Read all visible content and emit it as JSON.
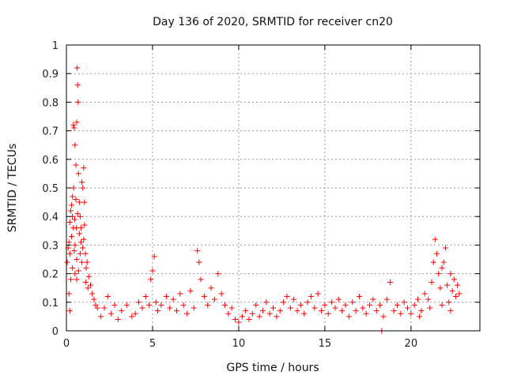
{
  "chart_data": {
    "type": "scatter",
    "title": "Day 136 of 2020, SRMTID for receiver cn20",
    "xlabel": "GPS time / hours",
    "ylabel": "SRMTID / TECUs",
    "xlim": [
      0,
      24
    ],
    "ylim": [
      0,
      1
    ],
    "xticks": [
      0,
      5,
      10,
      15,
      20
    ],
    "xtick_labels": [
      "0",
      "5",
      "10",
      "15",
      "20"
    ],
    "yticks": [
      0,
      0.1,
      0.2,
      0.3,
      0.4,
      0.5,
      0.6,
      0.7,
      0.8,
      0.9,
      1
    ],
    "ytick_labels": [
      "0",
      "0.1",
      "0.2",
      "0.3",
      "0.4",
      "0.5",
      "0.6",
      "0.7",
      "0.8",
      "0.9",
      "1"
    ],
    "grid": true,
    "marker": "+",
    "marker_color": "#ff0000",
    "series": [
      {
        "name": "cn20",
        "points": [
          [
            0.05,
            0.24
          ],
          [
            0.1,
            0.29
          ],
          [
            0.15,
            0.31
          ],
          [
            0.2,
            0.27
          ],
          [
            0.25,
            0.42
          ],
          [
            0.3,
            0.44
          ],
          [
            0.35,
            0.47
          ],
          [
            0.4,
            0.72
          ],
          [
            0.45,
            0.71
          ],
          [
            0.5,
            0.65
          ],
          [
            0.55,
            0.58
          ],
          [
            0.6,
            0.73
          ],
          [
            0.62,
            0.92
          ],
          [
            0.65,
            0.86
          ],
          [
            0.68,
            0.8
          ],
          [
            0.7,
            0.55
          ],
          [
            0.75,
            0.45
          ],
          [
            0.8,
            0.4
          ],
          [
            0.85,
            0.36
          ],
          [
            0.9,
            0.52
          ],
          [
            0.95,
            0.5
          ],
          [
            1.0,
            0.57
          ],
          [
            1.05,
            0.45
          ],
          [
            0.3,
            0.33
          ],
          [
            0.4,
            0.36
          ],
          [
            0.5,
            0.3
          ],
          [
            0.6,
            0.25
          ],
          [
            0.7,
            0.21
          ],
          [
            0.8,
            0.27
          ],
          [
            0.9,
            0.24
          ],
          [
            0.2,
            0.38
          ],
          [
            0.35,
            0.4
          ],
          [
            0.45,
            0.28
          ],
          [
            0.55,
            0.46
          ],
          [
            0.65,
            0.41
          ],
          [
            0.75,
            0.34
          ],
          [
            0.85,
            0.31
          ],
          [
            0.95,
            0.29
          ],
          [
            0.25,
            0.18
          ],
          [
            0.15,
            0.13
          ],
          [
            0.2,
            0.07
          ],
          [
            1.1,
            0.27
          ],
          [
            1.15,
            0.22
          ],
          [
            1.2,
            0.24
          ],
          [
            1.3,
            0.19
          ],
          [
            1.4,
            0.16
          ],
          [
            1.5,
            0.13
          ],
          [
            1.6,
            0.11
          ],
          [
            1.7,
            0.09
          ],
          [
            1.8,
            0.08
          ],
          [
            1.0,
            0.32
          ],
          [
            1.05,
            0.37
          ],
          [
            1.12,
            0.17
          ],
          [
            1.25,
            0.15
          ],
          [
            0.5,
            0.2
          ],
          [
            0.6,
            0.18
          ],
          [
            0.42,
            0.5
          ],
          [
            0.48,
            0.39
          ],
          [
            0.58,
            0.36
          ],
          [
            0.35,
            0.22
          ],
          [
            2.0,
            0.05
          ],
          [
            2.2,
            0.08
          ],
          [
            2.4,
            0.12
          ],
          [
            2.6,
            0.06
          ],
          [
            2.8,
            0.09
          ],
          [
            3.0,
            0.04
          ],
          [
            3.2,
            0.07
          ],
          [
            3.5,
            0.09
          ],
          [
            3.8,
            0.05
          ],
          [
            4.0,
            0.06
          ],
          [
            4.2,
            0.1
          ],
          [
            4.4,
            0.08
          ],
          [
            4.6,
            0.12
          ],
          [
            4.8,
            0.09
          ],
          [
            4.9,
            0.18
          ],
          [
            5.0,
            0.21
          ],
          [
            5.1,
            0.26
          ],
          [
            5.2,
            0.1
          ],
          [
            5.3,
            0.07
          ],
          [
            5.5,
            0.09
          ],
          [
            5.8,
            0.12
          ],
          [
            6.0,
            0.08
          ],
          [
            6.2,
            0.11
          ],
          [
            6.4,
            0.07
          ],
          [
            6.6,
            0.13
          ],
          [
            6.8,
            0.09
          ],
          [
            7.0,
            0.06
          ],
          [
            7.2,
            0.14
          ],
          [
            7.4,
            0.08
          ],
          [
            7.6,
            0.28
          ],
          [
            7.7,
            0.24
          ],
          [
            7.8,
            0.18
          ],
          [
            8.0,
            0.12
          ],
          [
            8.2,
            0.09
          ],
          [
            8.4,
            0.15
          ],
          [
            8.6,
            0.11
          ],
          [
            8.8,
            0.2
          ],
          [
            9.0,
            0.13
          ],
          [
            9.2,
            0.09
          ],
          [
            9.4,
            0.06
          ],
          [
            9.6,
            0.08
          ],
          [
            9.8,
            0.04
          ],
          [
            10.0,
            0.03
          ],
          [
            10.2,
            0.05
          ],
          [
            10.4,
            0.07
          ],
          [
            10.6,
            0.04
          ],
          [
            10.8,
            0.06
          ],
          [
            11.0,
            0.09
          ],
          [
            11.2,
            0.05
          ],
          [
            11.4,
            0.07
          ],
          [
            11.6,
            0.1
          ],
          [
            11.8,
            0.06
          ],
          [
            12.0,
            0.08
          ],
          [
            12.2,
            0.05
          ],
          [
            12.4,
            0.07
          ],
          [
            12.6,
            0.1
          ],
          [
            12.8,
            0.12
          ],
          [
            13.0,
            0.08
          ],
          [
            13.2,
            0.11
          ],
          [
            13.4,
            0.07
          ],
          [
            13.6,
            0.09
          ],
          [
            13.8,
            0.06
          ],
          [
            14.0,
            0.1
          ],
          [
            14.2,
            0.12
          ],
          [
            14.4,
            0.08
          ],
          [
            14.6,
            0.13
          ],
          [
            14.8,
            0.07
          ],
          [
            15.0,
            0.09
          ],
          [
            15.2,
            0.06
          ],
          [
            15.4,
            0.1
          ],
          [
            15.6,
            0.08
          ],
          [
            15.8,
            0.11
          ],
          [
            16.0,
            0.07
          ],
          [
            16.2,
            0.09
          ],
          [
            16.4,
            0.05
          ],
          [
            16.6,
            0.1
          ],
          [
            16.8,
            0.07
          ],
          [
            17.0,
            0.12
          ],
          [
            17.2,
            0.08
          ],
          [
            17.4,
            0.06
          ],
          [
            17.6,
            0.09
          ],
          [
            17.8,
            0.11
          ],
          [
            18.0,
            0.07
          ],
          [
            18.2,
            0.09
          ],
          [
            18.3,
            0.0
          ],
          [
            18.4,
            0.05
          ],
          [
            18.6,
            0.11
          ],
          [
            18.8,
            0.17
          ],
          [
            19.0,
            0.07
          ],
          [
            19.2,
            0.09
          ],
          [
            19.4,
            0.06
          ],
          [
            19.6,
            0.1
          ],
          [
            19.8,
            0.08
          ],
          [
            20.0,
            0.06
          ],
          [
            20.2,
            0.09
          ],
          [
            20.4,
            0.11
          ],
          [
            20.6,
            0.07
          ],
          [
            20.8,
            0.13
          ],
          [
            21.0,
            0.11
          ],
          [
            21.2,
            0.17
          ],
          [
            21.3,
            0.24
          ],
          [
            21.4,
            0.32
          ],
          [
            21.5,
            0.27
          ],
          [
            21.6,
            0.2
          ],
          [
            21.7,
            0.15
          ],
          [
            21.8,
            0.22
          ],
          [
            21.9,
            0.24
          ],
          [
            22.0,
            0.29
          ],
          [
            22.1,
            0.16
          ],
          [
            22.2,
            0.1
          ],
          [
            22.3,
            0.07
          ],
          [
            22.4,
            0.14
          ],
          [
            22.5,
            0.18
          ],
          [
            22.6,
            0.12
          ],
          [
            22.7,
            0.16
          ],
          [
            22.8,
            0.13
          ],
          [
            22.3,
            0.2
          ],
          [
            21.1,
            0.08
          ],
          [
            20.5,
            0.05
          ],
          [
            21.8,
            0.09
          ]
        ]
      }
    ]
  }
}
